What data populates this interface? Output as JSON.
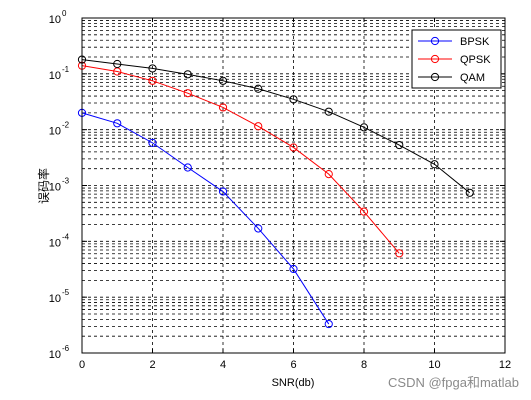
{
  "chart_data": {
    "type": "line",
    "xlabel": "SNR(db)",
    "ylabel": "误码率",
    "xlim": [
      0,
      12
    ],
    "ylim": [
      1e-06,
      1
    ],
    "yscale": "log",
    "grid": true,
    "legend_position": "top-right",
    "xticks": [
      0,
      2,
      4,
      6,
      8,
      10,
      12
    ],
    "yticks": [
      {
        "base": "10",
        "exp": "0"
      },
      {
        "base": "10",
        "exp": "-1"
      },
      {
        "base": "10",
        "exp": "-2"
      },
      {
        "base": "10",
        "exp": "-3"
      },
      {
        "base": "10",
        "exp": "-4"
      },
      {
        "base": "10",
        "exp": "-5"
      },
      {
        "base": "10",
        "exp": "-6"
      }
    ],
    "series": [
      {
        "name": "BPSK",
        "color": "#0000ff",
        "marker": "circle",
        "x": [
          0,
          1,
          2,
          3,
          4,
          5,
          6,
          7
        ],
        "y": [
          0.02,
          0.013,
          0.0058,
          0.0021,
          0.00078,
          0.00017,
          3.2e-05,
          3.3e-06
        ]
      },
      {
        "name": "QPSK",
        "color": "#ff0000",
        "marker": "circle",
        "x": [
          0,
          1,
          2,
          3,
          4,
          5,
          6,
          7,
          8,
          9
        ],
        "y": [
          0.14,
          0.11,
          0.075,
          0.045,
          0.025,
          0.0115,
          0.0048,
          0.0016,
          0.00034,
          6.1e-05
        ]
      },
      {
        "name": "QAM",
        "color": "#000000",
        "marker": "circle",
        "x": [
          0,
          1,
          2,
          3,
          4,
          5,
          6,
          7,
          8,
          9,
          10,
          11
        ],
        "y": [
          0.18,
          0.15,
          0.125,
          0.098,
          0.075,
          0.054,
          0.035,
          0.021,
          0.011,
          0.0053,
          0.0024,
          0.00074
        ]
      }
    ]
  },
  "watermark": "CSDN @fpga和matlab"
}
